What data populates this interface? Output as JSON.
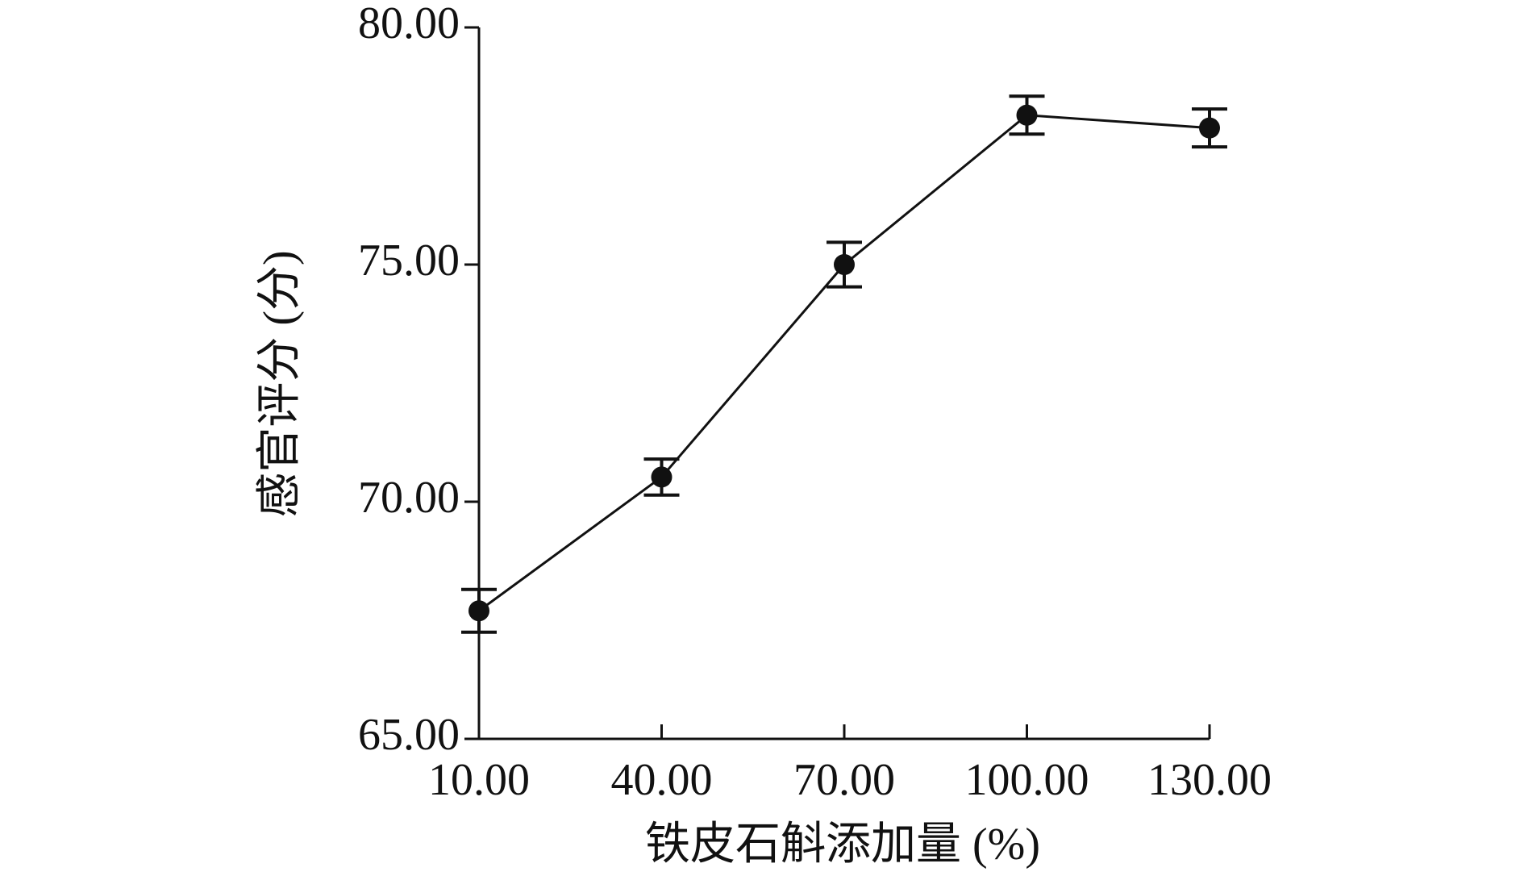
{
  "chart_data": {
    "type": "line",
    "x_label": "铁皮石斛添加量 (%)",
    "y_label": "感官评分 (分)",
    "x": [
      10,
      40,
      70,
      100,
      130
    ],
    "series": [
      {
        "color": "#111111",
        "values": [
          67.7,
          70.52,
          75.0,
          78.15,
          77.88
        ],
        "errors": [
          0.45,
          0.38,
          0.47,
          0.4,
          0.4
        ]
      }
    ],
    "xlim": [
      10,
      130
    ],
    "xticks": [
      {
        "value": 10,
        "label": "10.00"
      },
      {
        "value": 40,
        "label": "40.00"
      },
      {
        "value": 70,
        "label": "70.00"
      },
      {
        "value": 100,
        "label": "100.00"
      },
      {
        "value": 130,
        "label": "130.00"
      }
    ],
    "ylim": [
      65,
      80
    ],
    "yticks": [
      {
        "value": 65,
        "label": "65.00"
      },
      {
        "value": 70,
        "label": "70.00"
      },
      {
        "value": 75,
        "label": "75.00"
      },
      {
        "value": 80,
        "label": "80.00"
      }
    ]
  }
}
